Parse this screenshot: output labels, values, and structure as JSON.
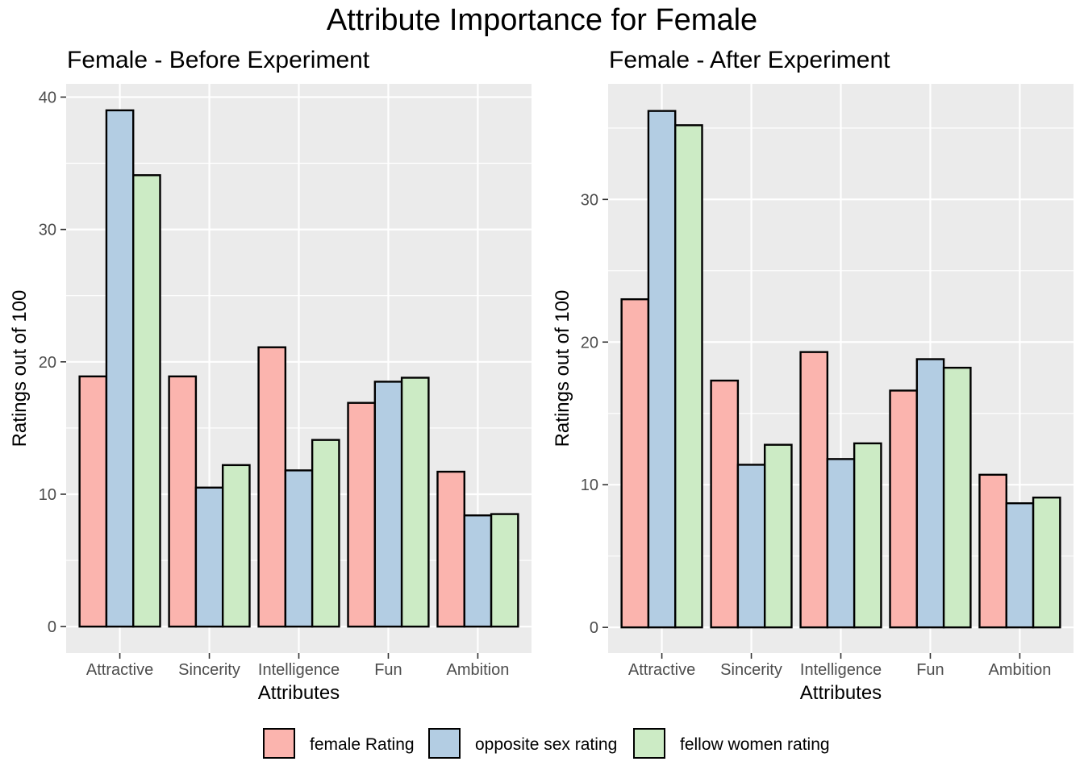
{
  "title": "Attribute Importance for Female",
  "colors": {
    "female_rating": "#FBB4AE",
    "opposite_sex": "#B3CDE3",
    "fellow_women": "#CCEBC5",
    "panel_bg": "#EBEBEB",
    "grid": "#FFFFFF"
  },
  "legend": {
    "items": [
      {
        "label": "female Rating",
        "color": "#FBB4AE"
      },
      {
        "label": "opposite sex rating",
        "color": "#B3CDE3"
      },
      {
        "label": "fellow women rating",
        "color": "#CCEBC5"
      }
    ]
  },
  "chart_data": [
    {
      "type": "bar",
      "title": "Female - Before Experiment",
      "xlabel": "Attributes",
      "ylabel": "Ratings out of 100",
      "categories": [
        "Attractive",
        "Sincerity",
        "Intelligence",
        "Fun",
        "Ambition"
      ],
      "ylim": [
        -2,
        41
      ],
      "yticks": [
        0,
        10,
        20,
        30,
        40
      ],
      "series": [
        {
          "name": "female Rating",
          "values": [
            18.9,
            18.9,
            21.1,
            16.9,
            11.7
          ]
        },
        {
          "name": "opposite sex rating",
          "values": [
            39.0,
            10.5,
            11.8,
            18.5,
            8.4
          ]
        },
        {
          "name": "fellow women rating",
          "values": [
            34.1,
            12.2,
            14.1,
            18.8,
            8.5
          ]
        }
      ]
    },
    {
      "type": "bar",
      "title": "Female - After Experiment",
      "xlabel": "Attributes",
      "ylabel": "Ratings out of 100",
      "categories": [
        "Attractive",
        "Sincerity",
        "Intelligence",
        "Fun",
        "Ambition"
      ],
      "ylim": [
        -1.8,
        38.1
      ],
      "yticks": [
        0,
        10,
        20,
        30
      ],
      "series": [
        {
          "name": "female Rating",
          "values": [
            23.0,
            17.3,
            19.3,
            16.6,
            10.7
          ]
        },
        {
          "name": "opposite sex rating",
          "values": [
            36.2,
            11.4,
            11.8,
            18.8,
            8.7
          ]
        },
        {
          "name": "fellow women rating",
          "values": [
            35.2,
            12.8,
            12.9,
            18.2,
            9.1
          ]
        }
      ]
    }
  ]
}
